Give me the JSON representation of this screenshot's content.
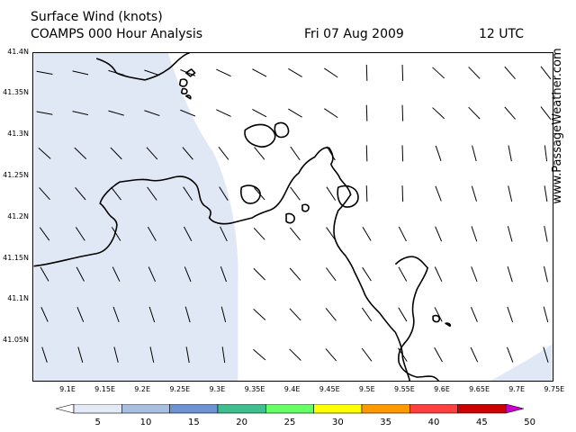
{
  "header": {
    "title": "Surface Wind (knots)",
    "model": "COAMPS 000 Hour Analysis",
    "date": "Fri 07 Aug 2009",
    "time": "12 UTC"
  },
  "watermark": "www.PassageWeather.com",
  "axes": {
    "lat_labels": [
      "41.4N",
      "41.35N",
      "41.3N",
      "41.25N",
      "41.2N",
      "41.15N",
      "41.1N",
      "41.05N"
    ],
    "lon_labels": [
      "9.1E",
      "9.15E",
      "9.2E",
      "9.25E",
      "9.3E",
      "9.35E",
      "9.4E",
      "9.45E",
      "9.5E",
      "9.55E",
      "9.6E",
      "9.65E",
      "9.7E",
      "9.75E"
    ]
  },
  "legend": {
    "labels": [
      "5",
      "10",
      "15",
      "20",
      "25",
      "30",
      "35",
      "40",
      "45",
      "50"
    ],
    "colors": [
      "#ffffff",
      "#e4eaf5",
      "#a9bfe0",
      "#6d93d2",
      "#3fbf8f",
      "#66ff66",
      "#ffff00",
      "#ff9900",
      "#ff4040",
      "#cc0000",
      "#cc00cc"
    ]
  },
  "colors": {
    "shading": "#e1e8f5",
    "coast": "#000000"
  }
}
